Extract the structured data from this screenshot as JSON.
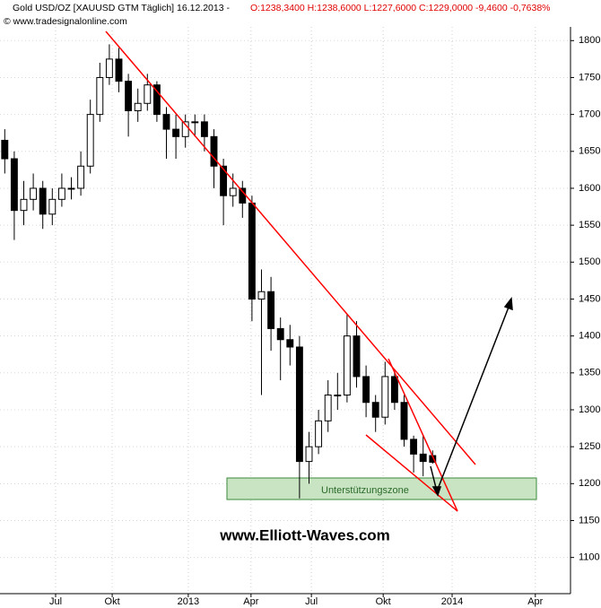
{
  "header": {
    "instrument": "Gold USD/OZ [XAUUSD GTM  Täglich] 16.12.2013 -",
    "quote": "O:1238,3400 H:1238,6000 L:1227,6000 C:1229,0000 -9,4600 -0,7638%",
    "copyright": "© www.tradesignalonline.com"
  },
  "chart_data": {
    "type": "candlestick",
    "annotations": {
      "zone": "Unterstützungszone",
      "watermark": "www.Elliott-Waves.com"
    },
    "x": [
      1,
      3,
      5,
      7,
      9,
      11,
      13,
      15,
      17,
      19,
      21,
      23,
      25,
      27,
      29,
      31,
      33,
      35,
      37,
      39,
      41,
      43,
      45,
      47,
      49,
      51,
      53,
      55,
      57,
      59,
      61,
      63,
      65,
      67,
      69,
      71,
      73,
      75,
      77,
      79,
      81,
      83,
      85,
      87,
      89,
      91
    ],
    "open": [
      1665,
      1640,
      1570,
      1585,
      1600,
      1565,
      1585,
      1600,
      1600,
      1630,
      1700,
      1750,
      1775,
      1745,
      1705,
      1715,
      1740,
      1700,
      1680,
      1670,
      1690,
      1690,
      1670,
      1630,
      1590,
      1600,
      1580,
      1450,
      1460,
      1410,
      1395,
      1385,
      1230,
      1250,
      1285,
      1320,
      1320,
      1400,
      1345,
      1310,
      1290,
      1345,
      1310,
      1260,
      1240,
      1238
    ],
    "high": [
      1680,
      1650,
      1610,
      1620,
      1610,
      1600,
      1620,
      1615,
      1650,
      1720,
      1770,
      1795,
      1790,
      1755,
      1735,
      1755,
      1745,
      1710,
      1700,
      1700,
      1700,
      1700,
      1680,
      1640,
      1620,
      1610,
      1590,
      1490,
      1480,
      1425,
      1415,
      1400,
      1270,
      1300,
      1340,
      1350,
      1430,
      1420,
      1360,
      1320,
      1365,
      1355,
      1320,
      1265,
      1265,
      1245
    ],
    "low": [
      1620,
      1530,
      1550,
      1570,
      1545,
      1550,
      1575,
      1585,
      1590,
      1620,
      1690,
      1740,
      1730,
      1670,
      1690,
      1705,
      1690,
      1640,
      1640,
      1655,
      1670,
      1650,
      1600,
      1550,
      1575,
      1560,
      1420,
      1320,
      1380,
      1340,
      1360,
      1180,
      1200,
      1240,
      1270,
      1300,
      1310,
      1330,
      1290,
      1270,
      1280,
      1300,
      1250,
      1215,
      1210,
      1227
    ],
    "close": [
      1640,
      1570,
      1585,
      1600,
      1565,
      1585,
      1600,
      1600,
      1630,
      1700,
      1750,
      1775,
      1745,
      1705,
      1715,
      1740,
      1700,
      1680,
      1670,
      1690,
      1690,
      1670,
      1630,
      1590,
      1600,
      1580,
      1450,
      1460,
      1410,
      1395,
      1385,
      1230,
      1250,
      1285,
      1320,
      1320,
      1400,
      1345,
      1310,
      1290,
      1345,
      1310,
      1260,
      1240,
      1230,
      1229
    ],
    "xlim": [
      0,
      120
    ],
    "xticks": [
      {
        "value": 11.7,
        "label": "Jul"
      },
      {
        "value": 23.6,
        "label": "Okt"
      },
      {
        "value": 39.6,
        "label": "2013"
      },
      {
        "value": 52.8,
        "label": "Apr"
      },
      {
        "value": 65.5,
        "label": "Jul"
      },
      {
        "value": 80.6,
        "label": "Okt"
      },
      {
        "value": 95.1,
        "label": "2014"
      },
      {
        "value": 112.6,
        "label": "Apr"
      }
    ],
    "ylim": [
      1051,
      1855
    ],
    "yticks": [
      1100,
      1150,
      1200,
      1250,
      1300,
      1350,
      1400,
      1450,
      1500,
      1550,
      1600,
      1650,
      1700,
      1750,
      1800
    ],
    "grid": true
  }
}
